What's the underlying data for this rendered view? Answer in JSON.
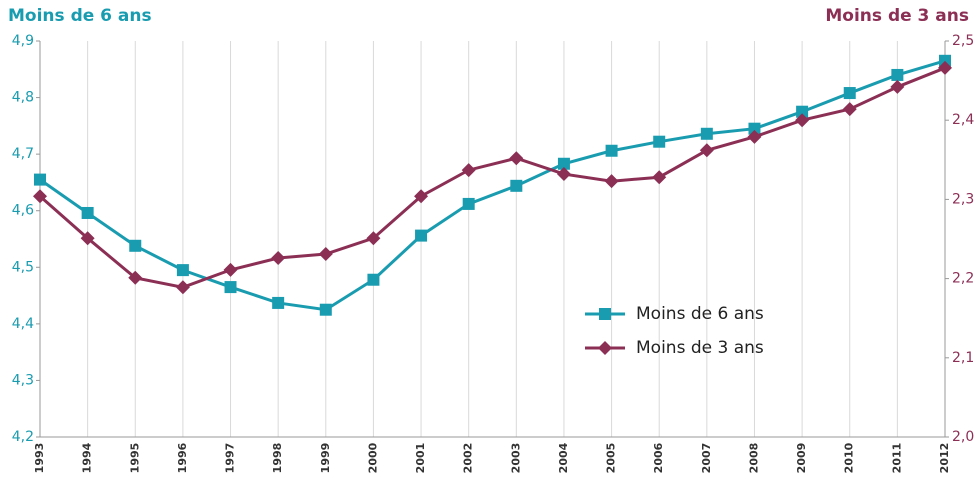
{
  "chart_data": {
    "type": "line",
    "y_title": "Moins de 6 ans",
    "y2_title": "Moins de 3 ans",
    "categories": [
      "1993",
      "1994",
      "1995",
      "1996",
      "1997",
      "1998",
      "1999",
      "2000",
      "2001",
      "2002",
      "2003",
      "2004",
      "2005",
      "2006",
      "2007",
      "2008",
      "2009",
      "2010",
      "2011",
      "2012"
    ],
    "series": [
      {
        "name": "Moins de 6 ans",
        "color": "#1a9cb0",
        "marker": "square",
        "axis": "y",
        "values": [
          4.655,
          4.596,
          4.538,
          4.495,
          4.465,
          4.437,
          4.425,
          4.478,
          4.556,
          4.612,
          4.644,
          4.683,
          4.706,
          4.722,
          4.736,
          4.745,
          4.775,
          4.808,
          4.84,
          4.865
        ]
      },
      {
        "name": "Moins de 3 ans",
        "color": "#8c2f55",
        "marker": "diamond",
        "axis": "y2",
        "values": [
          2.304,
          2.251,
          2.201,
          2.189,
          2.211,
          2.226,
          2.231,
          2.251,
          2.304,
          2.337,
          2.352,
          2.332,
          2.323,
          2.328,
          2.362,
          2.379,
          2.4,
          2.414,
          2.442,
          2.466
        ]
      }
    ],
    "ylim": [
      4.2,
      4.9
    ],
    "yticks": [
      {
        "value": 4.2,
        "label": "4,2"
      },
      {
        "value": 4.3,
        "label": "4,3"
      },
      {
        "value": 4.4,
        "label": "4,4"
      },
      {
        "value": 4.5,
        "label": "4,5"
      },
      {
        "value": 4.6,
        "label": "4,6"
      },
      {
        "value": 4.7,
        "label": "4,7"
      },
      {
        "value": 4.8,
        "label": "4,8"
      },
      {
        "value": 4.9,
        "label": "4,9"
      }
    ],
    "y2lim": [
      2.0,
      2.5
    ],
    "y2ticks": [
      {
        "value": 2.0,
        "label": "2,0"
      },
      {
        "value": 2.1,
        "label": "2,1"
      },
      {
        "value": 2.2,
        "label": "2,2"
      },
      {
        "value": 2.3,
        "label": "2,3"
      },
      {
        "value": 2.4,
        "label": "2,4"
      },
      {
        "value": 2.5,
        "label": "2,5"
      }
    ],
    "grid": "x",
    "legend": "center-right"
  }
}
